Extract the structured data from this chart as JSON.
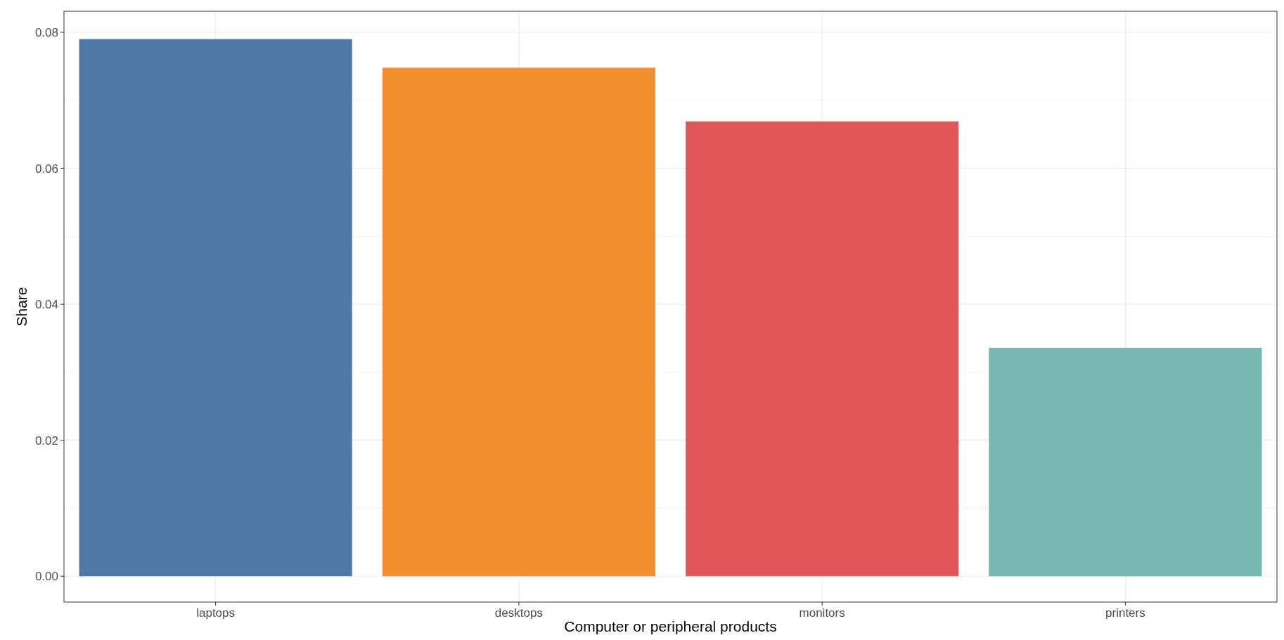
{
  "chart_data": {
    "type": "bar",
    "xlabel": "Computer or peripheral products",
    "ylabel": "Share",
    "categories": [
      "laptops",
      "desktops",
      "monitors",
      "printers"
    ],
    "values": [
      0.079,
      0.0748,
      0.0669,
      0.0336
    ],
    "colors": [
      "#4e79a7",
      "#f28e2b",
      "#e15759",
      "#76b7b2"
    ],
    "ylim": [
      -0.0038,
      0.0831
    ],
    "yticks": [
      {
        "value": 0,
        "label": "0.00"
      },
      {
        "value": 0.02,
        "label": "0.02"
      },
      {
        "value": 0.04,
        "label": "0.04"
      },
      {
        "value": 0.06,
        "label": "0.06"
      },
      {
        "value": 0.08,
        "label": "0.08"
      }
    ],
    "grid": true
  }
}
